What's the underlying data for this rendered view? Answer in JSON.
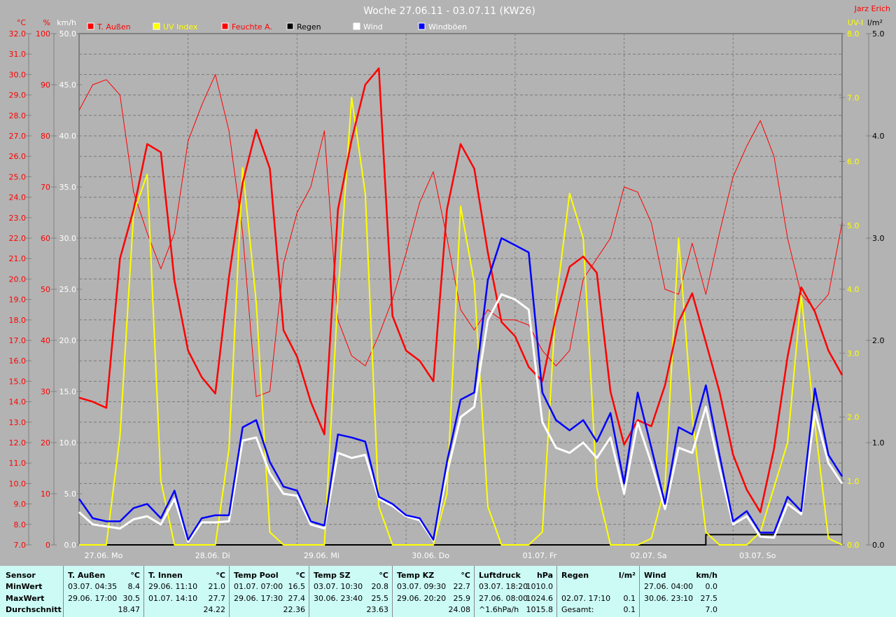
{
  "title": "Woche 27.06.11 - 03.07.11 (KW26)",
  "author": "Jarz Erich",
  "colors": {
    "background": "#b3b3b3",
    "temperature": "#ff0000",
    "uv": "#ffff00",
    "humidity": "#ff0000",
    "rain": "#000000",
    "wind": "#ffffff",
    "gusts": "#0000ff",
    "table_bg": "#ccfbf6"
  },
  "chart_data": {
    "type": "line",
    "title": "Woche 27.06.11 - 03.07.11 (KW26)",
    "grid": true,
    "legend_position": "top",
    "x_unit_hours_step": 3,
    "x_ticks": [
      "27.06. Mo",
      "28.06. Di",
      "29.06. Mi",
      "30.06. Do",
      "01.07. Fr",
      "02.07. Sa",
      "03.07. So"
    ],
    "axes": {
      "temp": {
        "label": "°C",
        "range": [
          7,
          32
        ],
        "step": 1
      },
      "humidity": {
        "label": "%",
        "range": [
          0,
          100
        ],
        "step": 10
      },
      "wind": {
        "label": "km/h",
        "range": [
          0,
          50
        ],
        "step": 5
      },
      "uv": {
        "label": "UV-I",
        "range": [
          0,
          8
        ],
        "step": 1
      },
      "rain": {
        "label": "l/m²",
        "range": [
          0,
          5
        ],
        "step": 1
      }
    },
    "series": [
      {
        "name": "T. Außen",
        "axis": "temp",
        "color": "#ff0000",
        "width": 2.5,
        "values": [
          14.2,
          14.0,
          13.7,
          21.0,
          23.4,
          26.6,
          26.2,
          19.9,
          16.5,
          15.2,
          14.4,
          20.1,
          24.7,
          27.3,
          25.4,
          17.5,
          16.2,
          14.0,
          12.4,
          23.4,
          26.8,
          29.5,
          30.3,
          18.2,
          16.5,
          16.0,
          15.0,
          23.4,
          26.6,
          25.4,
          21.3,
          17.9,
          17.2,
          15.7,
          15.0,
          18.2,
          20.6,
          21.1,
          20.3,
          14.5,
          11.9,
          13.1,
          12.8,
          14.8,
          17.9,
          19.3,
          16.9,
          14.5,
          11.4,
          9.7,
          8.6,
          11.7,
          16.2,
          19.6,
          18.4,
          16.5,
          15.3
        ]
      },
      {
        "name": "UV Index",
        "axis": "uv",
        "color": "#ffff00",
        "width": 2,
        "values": [
          0,
          0,
          0,
          1.7,
          5.2,
          5.8,
          1.0,
          0,
          0,
          0,
          0,
          1.5,
          5.9,
          3.8,
          0.2,
          0,
          0,
          0,
          0,
          3.9,
          7.0,
          5.5,
          0.6,
          0,
          0,
          0,
          0,
          0.8,
          5.3,
          4.1,
          0.6,
          0,
          0,
          0,
          0.2,
          3.8,
          5.5,
          4.8,
          0.9,
          0,
          0,
          0,
          0.1,
          0.9,
          4.8,
          2.0,
          0.2,
          0,
          0,
          0,
          0.2,
          0.9,
          1.6,
          3.9,
          1.9,
          0.1,
          0
        ]
      },
      {
        "name": "Feuchte A.",
        "axis": "humidity",
        "color": "#ff0000",
        "width": 1,
        "values": [
          85,
          90,
          91,
          88,
          69,
          61,
          54,
          61,
          79,
          86,
          92,
          81,
          61,
          29,
          30,
          55,
          65,
          70,
          81,
          44,
          37,
          35,
          41,
          48,
          57,
          67,
          73,
          60,
          46,
          42,
          46,
          44,
          44,
          43,
          38,
          35,
          38,
          52,
          56,
          60,
          70,
          69,
          63,
          50,
          49,
          59,
          49,
          61,
          72,
          78,
          83,
          76,
          60,
          49,
          46,
          49,
          63
        ]
      },
      {
        "name": "Regen",
        "axis": "rain",
        "color": "#000000",
        "width": 2,
        "values": [
          0,
          0,
          0,
          0,
          0,
          0,
          0,
          0,
          0,
          0,
          0,
          0,
          0,
          0,
          0,
          0,
          0,
          0,
          0,
          0,
          0,
          0,
          0,
          0,
          0,
          0,
          0,
          0,
          0,
          0,
          0,
          0,
          0,
          0,
          0,
          0,
          0,
          0,
          0,
          0,
          0,
          0,
          0,
          0,
          0,
          0,
          0.1,
          0.1,
          0.1,
          0.1,
          0.1,
          0.1,
          0.1,
          0.1,
          0.1,
          0.1,
          0.1
        ]
      },
      {
        "name": "Wind",
        "axis": "wind",
        "color": "#ffffff",
        "width": 3,
        "values": [
          3.2,
          2.0,
          1.8,
          1.6,
          2.5,
          2.8,
          2.0,
          4.5,
          0.3,
          2.2,
          2.2,
          2.3,
          10.2,
          10.5,
          7.0,
          5.0,
          4.8,
          2.0,
          1.6,
          9.0,
          8.5,
          8.8,
          4.5,
          3.8,
          2.8,
          2.4,
          0.4,
          7.0,
          12.5,
          13.5,
          22.0,
          24.5,
          24.0,
          23.0,
          12.0,
          9.5,
          9.0,
          10.0,
          8.5,
          10.5,
          5.0,
          12.0,
          8.0,
          3.5,
          9.5,
          9.0,
          13.5,
          7.5,
          2.0,
          2.8,
          0.8,
          0.7,
          4.0,
          3.0,
          13.0,
          8.0,
          6.0
        ]
      },
      {
        "name": "Windböen",
        "axis": "wind",
        "color": "#0000ff",
        "width": 2.5,
        "values": [
          4.5,
          2.6,
          2.3,
          2.3,
          3.6,
          4.0,
          2.6,
          5.3,
          0.5,
          2.6,
          2.9,
          2.9,
          11.5,
          12.2,
          8.1,
          5.7,
          5.3,
          2.3,
          1.9,
          10.8,
          10.5,
          10.1,
          4.7,
          4.0,
          2.9,
          2.6,
          0.5,
          8.1,
          14.2,
          14.9,
          25.9,
          30.0,
          29.3,
          28.6,
          14.9,
          12.2,
          11.2,
          12.2,
          10.1,
          12.9,
          6.0,
          14.9,
          9.5,
          4.0,
          11.5,
          10.8,
          15.6,
          8.8,
          2.3,
          3.3,
          1.2,
          1.2,
          4.7,
          3.3,
          15.3,
          8.8,
          6.7
        ]
      }
    ]
  },
  "legend": [
    {
      "label": "T. Außen",
      "color": "#ff0000"
    },
    {
      "label": "UV Index",
      "color": "#ffff00"
    },
    {
      "label": "Feuchte A.",
      "color": "#ff0000"
    },
    {
      "label": "Regen",
      "color": "#000000"
    },
    {
      "label": "Wind",
      "color": "#ffffff"
    },
    {
      "label": "Windböen",
      "color": "#0000ff"
    }
  ],
  "stats": {
    "row_labels": [
      "Sensor",
      "MinWert",
      "MaxWert",
      "Durchschnitt"
    ],
    "columns": [
      {
        "name": "T. Außen",
        "unit": "°C",
        "min": [
          "03.07.  04:35",
          "8.4"
        ],
        "max": [
          "29.06.  17:00",
          "30.5"
        ],
        "avg": [
          "",
          "18.47"
        ]
      },
      {
        "name": "T. Innen",
        "unit": "°C",
        "min": [
          "29.06.  11:10",
          "21.0"
        ],
        "max": [
          "01.07.  14:10",
          "27.7"
        ],
        "avg": [
          "",
          "24.22"
        ]
      },
      {
        "name": "Temp Pool",
        "unit": "°C",
        "min": [
          "01.07.  07:00",
          "16.5"
        ],
        "max": [
          "29.06.  17:30",
          "27.4"
        ],
        "avg": [
          "",
          "22.36"
        ]
      },
      {
        "name": "Temp SZ",
        "unit": "°C",
        "min": [
          "03.07.  10:30",
          "20.8"
        ],
        "max": [
          "30.06.  23:40",
          "25.5"
        ],
        "avg": [
          "",
          "23.63"
        ]
      },
      {
        "name": "Temp KZ",
        "unit": "°C",
        "min": [
          "03.07.  09:30",
          "22.7"
        ],
        "max": [
          "29.06.  20:20",
          "25.9"
        ],
        "avg": [
          "",
          "24.08"
        ]
      },
      {
        "name": "Luftdruck",
        "unit": "hPa",
        "min": [
          "03.07.  18:20",
          "1010.0"
        ],
        "max": [
          "27.06.  08:00",
          "1024.6"
        ],
        "avg": [
          "^1.6hPa/h",
          "1015.8"
        ]
      },
      {
        "name": "Regen",
        "unit": "l/m²",
        "min": [
          "",
          ""
        ],
        "max": [
          "02.07.  17:10",
          "0.1"
        ],
        "avg": [
          "Gesamt:",
          "0.1"
        ]
      },
      {
        "name": "Wind",
        "unit": "km/h",
        "min": [
          "27.06.  04:00",
          "0.0"
        ],
        "max": [
          "30.06.  23:10",
          "27.5"
        ],
        "avg": [
          "",
          "7.0"
        ]
      }
    ]
  }
}
